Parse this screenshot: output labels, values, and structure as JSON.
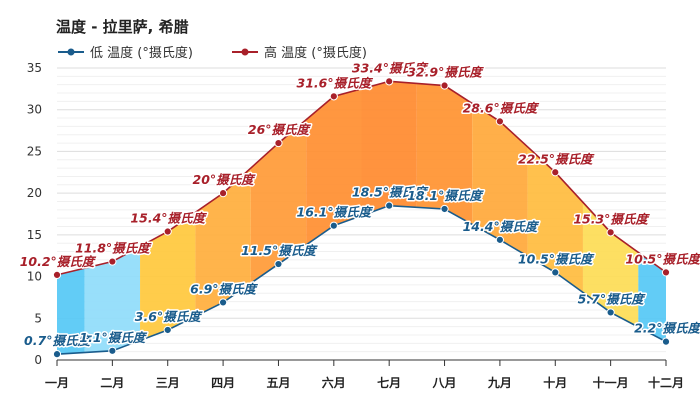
{
  "chart_data": {
    "type": "line",
    "title": "温度 - 拉里萨, 希腊",
    "categories": [
      "一月",
      "二月",
      "三月",
      "四月",
      "五月",
      "六月",
      "七月",
      "八月",
      "九月",
      "十月",
      "十一月",
      "十二月"
    ],
    "series": [
      {
        "name": "低 温度 (°摄氏度)",
        "color": "#1a5c8c",
        "values": [
          0.7,
          1.1,
          3.6,
          6.9,
          11.5,
          16.1,
          18.5,
          18.1,
          14.4,
          10.5,
          5.7,
          2.2
        ]
      },
      {
        "name": "高 温度 (°摄氏度)",
        "color": "#a8202a",
        "values": [
          10.2,
          11.8,
          15.4,
          20,
          26,
          31.6,
          33.4,
          32.9,
          28.6,
          22.5,
          15.3,
          10.5
        ]
      }
    ],
    "unit_suffix": "°摄氏度",
    "ylim": [
      0,
      35
    ],
    "yticks": [
      0,
      5,
      10,
      15,
      20,
      25,
      30,
      35
    ],
    "grid": true,
    "legend": "top-left",
    "band_colors": [
      "#55c8f5",
      "#8fdcfa",
      "#ffc83c",
      "#ffae3c",
      "#ff9a36",
      "#ff8e30",
      "#ff8a2e",
      "#ff9230",
      "#ffa83a",
      "#ffbc3e",
      "#fddc55",
      "#55c8f5"
    ]
  }
}
